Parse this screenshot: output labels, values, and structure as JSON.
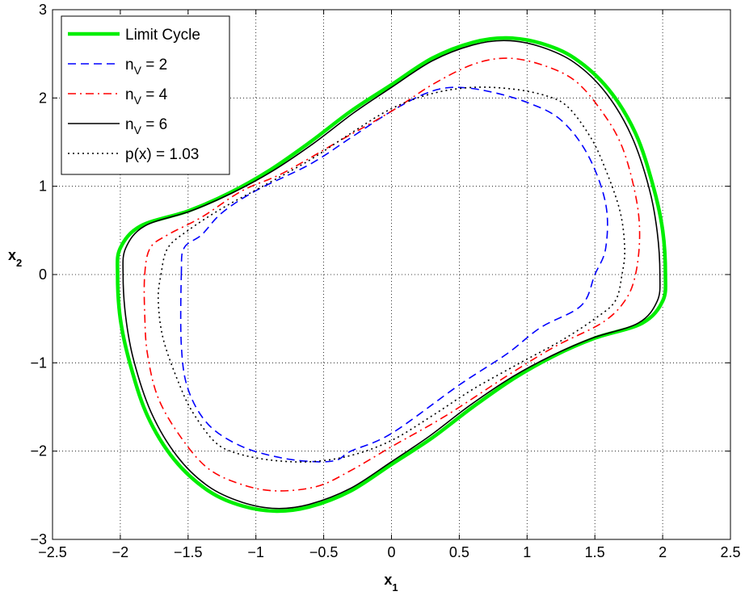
{
  "chart_data": {
    "type": "line",
    "xlabel": "x",
    "xlabel_sub": "1",
    "ylabel": "x",
    "ylabel_sub": "2",
    "xlim": [
      -2.5,
      2.5
    ],
    "ylim": [
      -3,
      3
    ],
    "xticks": [
      -2.5,
      -2,
      -1.5,
      -1,
      -0.5,
      0,
      0.5,
      1,
      1.5,
      2,
      2.5
    ],
    "xtick_labels": [
      "−2.5",
      "−2",
      "−1.5",
      "−1",
      "−0.5",
      "0",
      "0.5",
      "1",
      "1.5",
      "2",
      "2.5"
    ],
    "yticks": [
      -3,
      -2,
      -1,
      0,
      1,
      2,
      3
    ],
    "ytick_labels": [
      "−3",
      "−2",
      "−1",
      "0",
      "1",
      "2",
      "3"
    ],
    "grid": true,
    "legend_position": "top-left",
    "series": [
      {
        "name": "Limit Cycle",
        "color": "#00ee00",
        "style": "solid",
        "points": [
          [
            -2.02,
            0.0
          ],
          [
            -2.0,
            0.3
          ],
          [
            -1.85,
            0.55
          ],
          [
            -1.5,
            0.72
          ],
          [
            -1.2,
            0.92
          ],
          [
            -0.9,
            1.18
          ],
          [
            -0.6,
            1.5
          ],
          [
            -0.3,
            1.85
          ],
          [
            0.0,
            2.15
          ],
          [
            0.3,
            2.45
          ],
          [
            0.6,
            2.63
          ],
          [
            0.85,
            2.68
          ],
          [
            1.1,
            2.62
          ],
          [
            1.35,
            2.45
          ],
          [
            1.6,
            2.1
          ],
          [
            1.8,
            1.6
          ],
          [
            1.93,
            1.0
          ],
          [
            2.0,
            0.5
          ],
          [
            2.02,
            0.0
          ],
          [
            2.0,
            -0.3
          ],
          [
            1.85,
            -0.55
          ],
          [
            1.5,
            -0.72
          ],
          [
            1.2,
            -0.92
          ],
          [
            0.9,
            -1.18
          ],
          [
            0.6,
            -1.5
          ],
          [
            0.3,
            -1.85
          ],
          [
            0.0,
            -2.15
          ],
          [
            -0.3,
            -2.45
          ],
          [
            -0.6,
            -2.63
          ],
          [
            -0.85,
            -2.68
          ],
          [
            -1.1,
            -2.62
          ],
          [
            -1.35,
            -2.45
          ],
          [
            -1.6,
            -2.1
          ],
          [
            -1.8,
            -1.6
          ],
          [
            -1.93,
            -1.0
          ],
          [
            -2.0,
            -0.5
          ],
          [
            -2.02,
            0.0
          ]
        ]
      },
      {
        "name": "n_V = 2",
        "color": "#0000ff",
        "style": "dashed",
        "points": [
          [
            -1.55,
            0.0
          ],
          [
            -1.53,
            0.3
          ],
          [
            -1.4,
            0.45
          ],
          [
            -1.25,
            0.7
          ],
          [
            -1.0,
            0.95
          ],
          [
            -0.6,
            1.25
          ],
          [
            -0.3,
            1.55
          ],
          [
            0.0,
            1.85
          ],
          [
            0.25,
            2.05
          ],
          [
            0.45,
            2.12
          ],
          [
            0.7,
            2.08
          ],
          [
            1.0,
            1.95
          ],
          [
            1.25,
            1.75
          ],
          [
            1.45,
            1.35
          ],
          [
            1.58,
            0.8
          ],
          [
            1.58,
            0.3
          ],
          [
            1.5,
            0.0
          ],
          [
            1.4,
            -0.35
          ],
          [
            1.1,
            -0.6
          ],
          [
            0.85,
            -0.9
          ],
          [
            0.5,
            -1.25
          ],
          [
            0.0,
            -1.8
          ],
          [
            -0.3,
            -2.0
          ],
          [
            -0.4,
            -2.1
          ],
          [
            -0.55,
            -2.12
          ],
          [
            -0.8,
            -2.08
          ],
          [
            -1.1,
            -1.95
          ],
          [
            -1.35,
            -1.7
          ],
          [
            -1.5,
            -1.3
          ],
          [
            -1.55,
            -0.8
          ],
          [
            -1.55,
            0.0
          ]
        ]
      },
      {
        "name": "n_V = 4",
        "color": "#ff0000",
        "style": "dashdot",
        "points": [
          [
            -1.82,
            0.0
          ],
          [
            -1.78,
            0.3
          ],
          [
            -1.65,
            0.45
          ],
          [
            -1.4,
            0.65
          ],
          [
            -1.1,
            0.95
          ],
          [
            -0.8,
            1.15
          ],
          [
            -0.4,
            1.5
          ],
          [
            0.0,
            1.85
          ],
          [
            0.3,
            2.15
          ],
          [
            0.6,
            2.38
          ],
          [
            0.85,
            2.45
          ],
          [
            1.1,
            2.38
          ],
          [
            1.35,
            2.2
          ],
          [
            1.55,
            1.85
          ],
          [
            1.7,
            1.45
          ],
          [
            1.8,
            0.9
          ],
          [
            1.83,
            0.45
          ],
          [
            1.8,
            0.0
          ],
          [
            1.72,
            -0.3
          ],
          [
            1.55,
            -0.55
          ],
          [
            1.2,
            -0.82
          ],
          [
            0.85,
            -1.15
          ],
          [
            0.4,
            -1.6
          ],
          [
            0.0,
            -1.95
          ],
          [
            -0.3,
            -2.22
          ],
          [
            -0.55,
            -2.4
          ],
          [
            -0.85,
            -2.45
          ],
          [
            -1.1,
            -2.38
          ],
          [
            -1.35,
            -2.2
          ],
          [
            -1.55,
            -1.85
          ],
          [
            -1.72,
            -1.4
          ],
          [
            -1.8,
            -0.9
          ],
          [
            -1.82,
            -0.45
          ],
          [
            -1.82,
            0.0
          ]
        ]
      },
      {
        "name": "n_V = 6",
        "color": "#000000",
        "style": "solid",
        "points": [
          [
            -1.98,
            0.0
          ],
          [
            -1.96,
            0.3
          ],
          [
            -1.82,
            0.55
          ],
          [
            -1.48,
            0.72
          ],
          [
            -1.18,
            0.92
          ],
          [
            -0.88,
            1.17
          ],
          [
            -0.58,
            1.48
          ],
          [
            -0.28,
            1.83
          ],
          [
            0.0,
            2.12
          ],
          [
            0.3,
            2.42
          ],
          [
            0.6,
            2.6
          ],
          [
            0.85,
            2.65
          ],
          [
            1.1,
            2.58
          ],
          [
            1.35,
            2.4
          ],
          [
            1.58,
            2.06
          ],
          [
            1.77,
            1.57
          ],
          [
            1.9,
            0.98
          ],
          [
            1.96,
            0.48
          ],
          [
            1.98,
            0.0
          ],
          [
            1.96,
            -0.3
          ],
          [
            1.82,
            -0.55
          ],
          [
            1.48,
            -0.72
          ],
          [
            1.18,
            -0.92
          ],
          [
            0.88,
            -1.17
          ],
          [
            0.58,
            -1.48
          ],
          [
            0.28,
            -1.83
          ],
          [
            0.0,
            -2.12
          ],
          [
            -0.3,
            -2.42
          ],
          [
            -0.6,
            -2.6
          ],
          [
            -0.85,
            -2.65
          ],
          [
            -1.1,
            -2.58
          ],
          [
            -1.35,
            -2.4
          ],
          [
            -1.58,
            -2.06
          ],
          [
            -1.77,
            -1.57
          ],
          [
            -1.9,
            -0.98
          ],
          [
            -1.96,
            -0.48
          ],
          [
            -1.98,
            0.0
          ]
        ]
      },
      {
        "name": "p(x) = 1.03",
        "color": "#000000",
        "style": "dotted",
        "points": [
          [
            -1.7,
            0.0
          ],
          [
            -1.65,
            0.3
          ],
          [
            -1.5,
            0.5
          ],
          [
            -1.25,
            0.75
          ],
          [
            -0.95,
            1.0
          ],
          [
            -0.6,
            1.3
          ],
          [
            -0.3,
            1.6
          ],
          [
            0.0,
            1.88
          ],
          [
            0.3,
            2.05
          ],
          [
            0.6,
            2.12
          ],
          [
            0.9,
            2.1
          ],
          [
            1.15,
            2.02
          ],
          [
            1.3,
            1.9
          ],
          [
            1.45,
            1.6
          ],
          [
            1.55,
            1.3
          ],
          [
            1.68,
            0.75
          ],
          [
            1.72,
            0.3
          ],
          [
            1.7,
            0.0
          ],
          [
            1.65,
            -0.3
          ],
          [
            1.5,
            -0.5
          ],
          [
            1.25,
            -0.75
          ],
          [
            0.95,
            -1.0
          ],
          [
            0.6,
            -1.3
          ],
          [
            0.3,
            -1.6
          ],
          [
            0.0,
            -1.88
          ],
          [
            -0.3,
            -2.05
          ],
          [
            -0.6,
            -2.12
          ],
          [
            -0.9,
            -2.1
          ],
          [
            -1.15,
            -2.02
          ],
          [
            -1.3,
            -1.9
          ],
          [
            -1.45,
            -1.6
          ],
          [
            -1.55,
            -1.3
          ],
          [
            -1.68,
            -0.75
          ],
          [
            -1.72,
            -0.3
          ],
          [
            -1.7,
            0.0
          ]
        ]
      }
    ]
  },
  "legend": {
    "items": [
      {
        "label": "Limit Cycle",
        "main": "Limit Cycle",
        "sub": "",
        "tail": ""
      },
      {
        "label": "n_V = 2",
        "main": "n",
        "sub": "V",
        "tail": " = 2"
      },
      {
        "label": "n_V = 4",
        "main": "n",
        "sub": "V",
        "tail": " = 4"
      },
      {
        "label": "n_V = 6",
        "main": "n",
        "sub": "V",
        "tail": " = 6"
      },
      {
        "label": "p(x) = 1.03",
        "main": "p(x) = 1.03",
        "sub": "",
        "tail": ""
      }
    ]
  }
}
